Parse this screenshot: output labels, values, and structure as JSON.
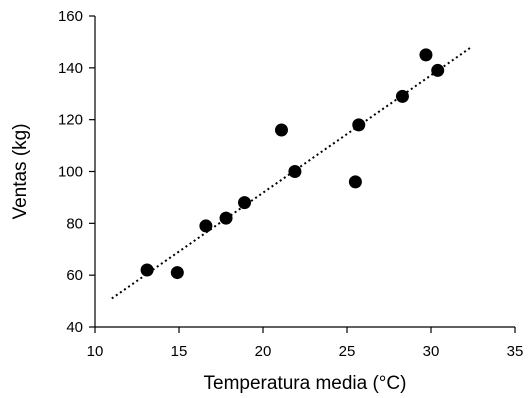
{
  "chart_data": {
    "type": "scatter",
    "title": "",
    "xlabel": "Temperatura media (°C)",
    "ylabel": "Ventas (kg)",
    "xlim": [
      10,
      35
    ],
    "ylim": [
      40,
      160
    ],
    "x_ticks": [
      10,
      15,
      20,
      25,
      30,
      35
    ],
    "y_ticks": [
      40,
      60,
      80,
      100,
      120,
      140,
      160
    ],
    "grid": false,
    "legend": "none",
    "points": [
      {
        "x": 13.1,
        "y": 62
      },
      {
        "x": 14.9,
        "y": 61
      },
      {
        "x": 16.6,
        "y": 79
      },
      {
        "x": 17.8,
        "y": 82
      },
      {
        "x": 18.9,
        "y": 88
      },
      {
        "x": 21.1,
        "y": 116
      },
      {
        "x": 21.9,
        "y": 100
      },
      {
        "x": 25.5,
        "y": 96
      },
      {
        "x": 25.7,
        "y": 118
      },
      {
        "x": 28.3,
        "y": 129
      },
      {
        "x": 29.7,
        "y": 145
      },
      {
        "x": 30.4,
        "y": 139
      }
    ],
    "trendline": {
      "style": "dotted",
      "start": {
        "x": 11,
        "y": 51
      },
      "end": {
        "x": 32.4,
        "y": 148
      }
    }
  }
}
